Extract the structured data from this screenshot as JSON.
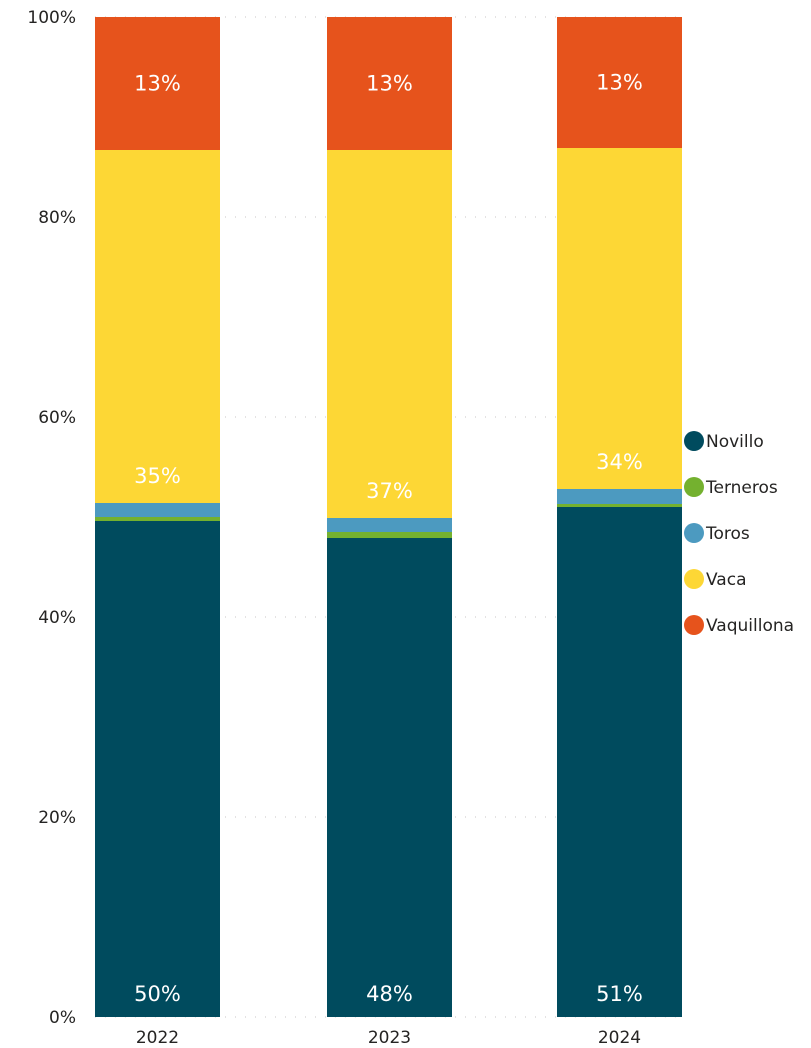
{
  "chart_data": {
    "type": "bar",
    "stacked": true,
    "categories": [
      "2022",
      "2023",
      "2024"
    ],
    "series": [
      {
        "name": "Novillo",
        "color": "#004B5E",
        "values": [
          49.6,
          47.9,
          51.0
        ]
      },
      {
        "name": "Terneros",
        "color": "#74B12F",
        "values": [
          0.4,
          0.6,
          0.3
        ]
      },
      {
        "name": "Toros",
        "color": "#4C9AC0",
        "values": [
          1.4,
          1.4,
          1.5
        ]
      },
      {
        "name": "Vaca",
        "color": "#FDD735",
        "values": [
          35.3,
          36.8,
          34.1
        ]
      },
      {
        "name": "Vaquillona",
        "color": "#E6531C",
        "values": [
          13.3,
          13.3,
          13.1
        ]
      }
    ],
    "data_labels": [
      {
        "series": "Novillo",
        "texts": [
          "50%",
          "48%",
          "51%"
        ]
      },
      {
        "series": "Vaca",
        "texts": [
          "35%",
          "37%",
          "34%"
        ]
      },
      {
        "series": "Vaquillona",
        "texts": [
          "13%",
          "13%",
          "13%"
        ]
      }
    ],
    "y_ticks": [
      "0%",
      "20%",
      "40%",
      "60%",
      "80%",
      "100%"
    ],
    "ylim": [
      0,
      100
    ],
    "grid": true,
    "legend_position": "right"
  }
}
